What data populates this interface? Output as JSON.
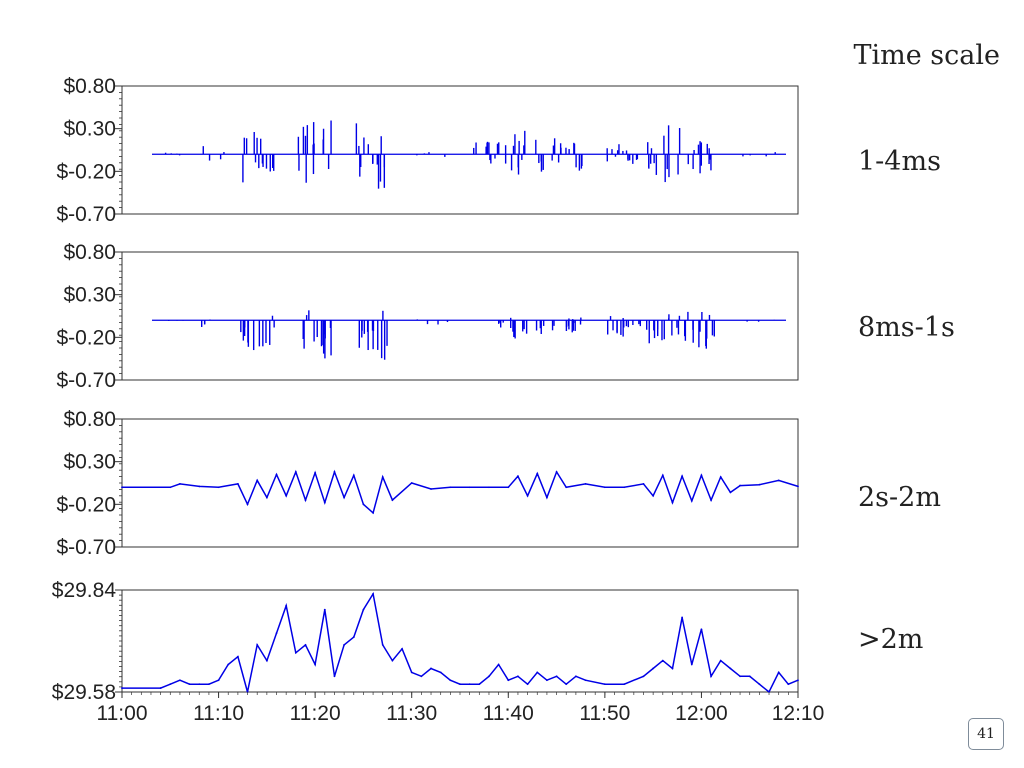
{
  "header": {
    "time_scale_label": "Time scale"
  },
  "page_number": "41",
  "colors": {
    "series": "#0000e6",
    "axis": "#333333",
    "text": "#222222"
  },
  "chart_data": [
    {
      "type": "line",
      "scale_label": "1-4ms",
      "xlim": [
        "11:00",
        "12:10"
      ],
      "ylim": [
        -0.7,
        0.8
      ],
      "yticks": [
        "$0.80",
        "$0.30",
        "$-0.20",
        "$-0.70"
      ],
      "ytick_values": [
        0.8,
        0.3,
        -0.2,
        -0.7
      ],
      "baseline": 0.0,
      "series": [
        {
          "x": [
            "11:06",
            "11:10",
            "11:14",
            "11:20",
            "11:26",
            "11:32",
            "11:38",
            "11:42",
            "11:46",
            "11:52",
            "11:56",
            "12:00",
            "12:06"
          ],
          "values": [
            0.02,
            -0.1,
            0.35,
            0.42,
            -0.45,
            0.05,
            -0.15,
            0.3,
            -0.2,
            -0.12,
            0.35,
            -0.25,
            0.03
          ]
        }
      ]
    },
    {
      "type": "line",
      "scale_label": "8ms-1s",
      "xlim": [
        "11:00",
        "12:10"
      ],
      "ylim": [
        -0.7,
        0.8
      ],
      "yticks": [
        "$0.80",
        "$0.30",
        "$-0.20",
        "$-0.70"
      ],
      "ytick_values": [
        0.8,
        0.3,
        -0.2,
        -0.7
      ],
      "baseline": 0.0,
      "series": [
        {
          "x": [
            "11:06",
            "11:10",
            "11:14",
            "11:20",
            "11:26",
            "11:32",
            "11:38",
            "11:42",
            "11:46",
            "11:52",
            "11:56",
            "12:00",
            "12:06"
          ],
          "values": [
            0.01,
            -0.08,
            -0.4,
            -0.45,
            -0.48,
            -0.05,
            -0.1,
            -0.25,
            -0.15,
            -0.2,
            -0.3,
            -0.35,
            0.02
          ]
        }
      ]
    },
    {
      "type": "line",
      "scale_label": "2s-2m",
      "xlim": [
        "11:00",
        "12:10"
      ],
      "ylim": [
        -0.7,
        0.8
      ],
      "yticks": [
        "$0.80",
        "$0.30",
        "$-0.20",
        "$-0.70"
      ],
      "ytick_values": [
        0.8,
        0.3,
        -0.2,
        -0.7
      ],
      "series": [
        {
          "x": [
            "11:00",
            "11:05",
            "11:06",
            "11:08",
            "11:10",
            "11:12",
            "11:13",
            "11:14",
            "11:15",
            "11:16",
            "11:17",
            "11:18",
            "11:19",
            "11:20",
            "11:21",
            "11:22",
            "11:23",
            "11:24",
            "11:25",
            "11:26",
            "11:27",
            "11:28",
            "11:30",
            "11:32",
            "11:34",
            "11:36",
            "11:38",
            "11:40",
            "11:41",
            "11:42",
            "11:43",
            "11:44",
            "11:45",
            "11:46",
            "11:48",
            "11:50",
            "11:52",
            "11:54",
            "11:55",
            "11:56",
            "11:57",
            "11:58",
            "11:59",
            "12:00",
            "12:01",
            "12:02",
            "12:03",
            "12:04",
            "12:06",
            "12:08",
            "12:10"
          ],
          "values": [
            0.0,
            0.0,
            0.04,
            0.01,
            0.0,
            0.04,
            -0.2,
            0.08,
            -0.12,
            0.15,
            -0.1,
            0.18,
            -0.15,
            0.17,
            -0.18,
            0.18,
            -0.12,
            0.14,
            -0.2,
            -0.3,
            0.12,
            -0.15,
            0.05,
            -0.02,
            0.0,
            0.0,
            0.0,
            0.0,
            0.13,
            -0.1,
            0.16,
            -0.12,
            0.18,
            0.0,
            0.04,
            0.0,
            0.0,
            0.04,
            -0.1,
            0.14,
            -0.18,
            0.13,
            -0.16,
            0.14,
            -0.15,
            0.12,
            -0.06,
            0.02,
            0.03,
            0.08,
            0.01
          ]
        }
      ]
    },
    {
      "type": "line",
      "scale_label": ">2m",
      "xlim": [
        "11:00",
        "12:10"
      ],
      "ylim": [
        29.58,
        29.84
      ],
      "yticks": [
        "$29.84",
        "$29.58"
      ],
      "ytick_values": [
        29.84,
        29.58
      ],
      "xticks": [
        "11:00",
        "11:10",
        "11:20",
        "11:30",
        "11:40",
        "11:50",
        "12:00",
        "12:10"
      ],
      "series": [
        {
          "x": [
            "11:00",
            "11:04",
            "11:05",
            "11:06",
            "11:07",
            "11:08",
            "11:09",
            "11:10",
            "11:11",
            "11:12",
            "11:13",
            "11:14",
            "11:15",
            "11:16",
            "11:17",
            "11:18",
            "11:19",
            "11:20",
            "11:21",
            "11:22",
            "11:23",
            "11:24",
            "11:25",
            "11:26",
            "11:27",
            "11:28",
            "11:29",
            "11:30",
            "11:31",
            "11:32",
            "11:33",
            "11:34",
            "11:35",
            "11:36",
            "11:37",
            "11:38",
            "11:39",
            "11:40",
            "11:41",
            "11:42",
            "11:43",
            "11:44",
            "11:45",
            "11:46",
            "11:47",
            "11:48",
            "11:50",
            "11:52",
            "11:54",
            "11:55",
            "11:56",
            "11:57",
            "11:58",
            "11:59",
            "12:00",
            "12:01",
            "12:02",
            "12:03",
            "12:04",
            "12:05",
            "12:06",
            "12:07",
            "12:08",
            "12:09",
            "12:10"
          ],
          "values": [
            29.59,
            29.59,
            29.6,
            29.61,
            29.6,
            29.6,
            29.6,
            29.61,
            29.65,
            29.67,
            29.58,
            29.7,
            29.66,
            29.73,
            29.8,
            29.68,
            29.7,
            29.65,
            29.79,
            29.62,
            29.7,
            29.72,
            29.79,
            29.83,
            29.7,
            29.66,
            29.69,
            29.63,
            29.62,
            29.64,
            29.63,
            29.61,
            29.6,
            29.6,
            29.6,
            29.62,
            29.65,
            29.61,
            29.62,
            29.6,
            29.63,
            29.61,
            29.62,
            29.6,
            29.62,
            29.61,
            29.6,
            29.6,
            29.62,
            29.64,
            29.66,
            29.64,
            29.77,
            29.65,
            29.74,
            29.62,
            29.66,
            29.64,
            29.62,
            29.62,
            29.6,
            29.58,
            29.63,
            29.6,
            29.61
          ]
        }
      ]
    }
  ]
}
